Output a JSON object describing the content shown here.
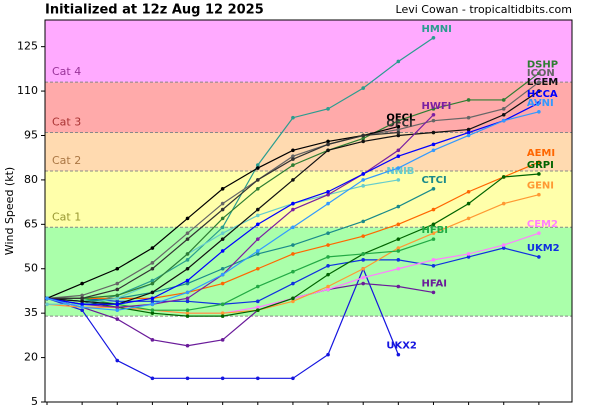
{
  "chart_data": {
    "type": "line",
    "title": "Initialized at 12z Aug 12 2025",
    "subtitle": "Levi Cowan - tropicaltidbits.com",
    "y_label": "Wind Speed (kt)",
    "categories": [
      null,
      null,
      null,
      null,
      null,
      null,
      null,
      null,
      null,
      null,
      null,
      null,
      null,
      null,
      null
    ],
    "ylim": [
      5,
      134
    ],
    "yticks": [
      5,
      20,
      35,
      50,
      65,
      80,
      95,
      110,
      125
    ],
    "bands": [
      {
        "from": 34,
        "to": 64,
        "color": "#aaffaa"
      },
      {
        "label": "Cat 1",
        "from": 64,
        "to": 83,
        "color": "#ffffaa",
        "text_color": "#999933"
      },
      {
        "label": "Cat 2",
        "from": 83,
        "to": 96,
        "color": "#ffdab0",
        "text_color": "#aa7744"
      },
      {
        "label": "Cat 3",
        "from": 96,
        "to": 113,
        "color": "#ffaaaa",
        "text_color": "#aa3333"
      },
      {
        "label": "Cat 4",
        "from": 113,
        "color": "#ffaaff",
        "text_color": "#993399"
      }
    ],
    "series": [
      {
        "name": "HMNI",
        "color": "#2a9d8f",
        "values": [
          40,
          38,
          41,
          46,
          53,
          64,
          85,
          101,
          104,
          111,
          120,
          128,
          null,
          null,
          null
        ]
      },
      {
        "name": "UKX2",
        "color": "#1515e0",
        "values": [
          40,
          36,
          19,
          13,
          13,
          13,
          13,
          13,
          21,
          50,
          21,
          null,
          null,
          null,
          null
        ]
      },
      {
        "name": "HFAI",
        "color": "#6a1b9a",
        "values": [
          40,
          37,
          33,
          26,
          24,
          26,
          36,
          40,
          43,
          45,
          44,
          42,
          null,
          null,
          null
        ]
      },
      {
        "name": "UKM2",
        "color": "#1030e0",
        "values": [
          40,
          40,
          39,
          39,
          39,
          38,
          39,
          45,
          51,
          53,
          53,
          51,
          54,
          57,
          54
        ]
      },
      {
        "name": "CEM2",
        "color": "#ff80ff",
        "values": [
          38,
          37,
          37,
          36,
          35,
          35,
          37,
          40,
          43,
          47,
          50,
          53,
          55,
          58,
          62
        ]
      },
      {
        "name": "GENI",
        "color": "#ff9933",
        "values": [
          38,
          37,
          37,
          36,
          35,
          35,
          36,
          39,
          44,
          50,
          57,
          62,
          67,
          72,
          75
        ]
      },
      {
        "name": "AEMI",
        "color": "#ff6600",
        "values": [
          40,
          40,
          40,
          40,
          42,
          45,
          50,
          55,
          58,
          61,
          65,
          70,
          76,
          81,
          86
        ]
      },
      {
        "name": "GRPI",
        "color": "#006400",
        "values": [
          40,
          39,
          37,
          35,
          34,
          34,
          36,
          40,
          48,
          55,
          60,
          65,
          72,
          81,
          82
        ]
      },
      {
        "name": "HFBI",
        "color": "#22aa44",
        "values": [
          40,
          40,
          38,
          36,
          36,
          38,
          44,
          49,
          54,
          55,
          56,
          60,
          null,
          null,
          null
        ]
      },
      {
        "name": "CTCI",
        "color": "#1a8a8a",
        "values": [
          40,
          39,
          40,
          42,
          45,
          50,
          55,
          58,
          62,
          66,
          71,
          77,
          null,
          null,
          null
        ]
      },
      {
        "name": "NNIB",
        "color": "#66cccc",
        "values": [
          38,
          38,
          40,
          45,
          55,
          62,
          68,
          72,
          75,
          78,
          80,
          null,
          null,
          null,
          null
        ]
      },
      {
        "name": "DSHP",
        "color": "#2e7d32",
        "values": [
          40,
          40,
          41,
          45,
          55,
          67,
          77,
          85,
          90,
          94,
          100,
          104,
          107,
          107,
          116
        ]
      },
      {
        "name": "LGEM",
        "color": "#111111",
        "values": [
          40,
          39,
          38,
          42,
          50,
          60,
          70,
          80,
          90,
          93,
          95,
          96,
          97,
          102,
          110
        ]
      },
      {
        "name": "ICON",
        "color": "#666666",
        "values": [
          40,
          41,
          45,
          52,
          62,
          72,
          80,
          88,
          92,
          95,
          97,
          100,
          101,
          104,
          113
        ]
      },
      {
        "name": "OFCL",
        "color": "#000000",
        "values": [
          40,
          45,
          50,
          57,
          67,
          77,
          84,
          90,
          93,
          95,
          98,
          null,
          null,
          null,
          null
        ]
      },
      {
        "name": "OFCI",
        "color": "#333333",
        "values": [
          40,
          40,
          43,
          50,
          60,
          70,
          80,
          87,
          92,
          95,
          96,
          null,
          null,
          null,
          null
        ]
      },
      {
        "name": "HWFI",
        "color": "#7b1fa2",
        "values": [
          40,
          38,
          37,
          38,
          40,
          48,
          60,
          70,
          75,
          82,
          90,
          102,
          null,
          null,
          null
        ]
      },
      {
        "name": "HCCA",
        "color": "#0000ff",
        "values": [
          40,
          38,
          38,
          40,
          46,
          56,
          65,
          72,
          76,
          82,
          88,
          92,
          96,
          100,
          106
        ]
      },
      {
        "name": "AVNI",
        "color": "#3399ff",
        "values": [
          40,
          37,
          36,
          38,
          42,
          48,
          56,
          64,
          72,
          80,
          84,
          90,
          95,
          100,
          103
        ]
      }
    ]
  }
}
